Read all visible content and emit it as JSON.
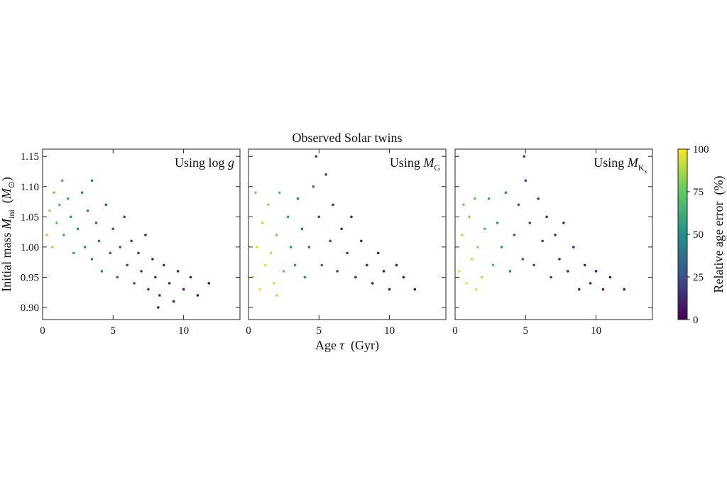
{
  "chart_data": [
    {
      "type": "scatter",
      "xlim": [
        0,
        14
      ],
      "ylim": [
        0.88,
        1.162
      ],
      "xticks": [
        0,
        5,
        10
      ],
      "yticks": [
        {
          "value": 0.9,
          "label": "0.90"
        },
        0.95,
        {
          "value": 1.0,
          "label": "1.00"
        },
        1.05,
        {
          "value": 1.1,
          "label": "1.10"
        },
        1.15
      ],
      "ytick_labels": true,
      "colormap": "viridis",
      "clim": [
        0,
        100
      ],
      "ylabel": [
        {
          "text": "Initial mass "
        },
        {
          "text": "M",
          "style": "italic"
        },
        {
          "text": "ini",
          "style": "sub"
        },
        {
          "text": "  ("
        },
        {
          "text": "M",
          "style": "italic"
        },
        {
          "text": "⊙",
          "style": "sub"
        },
        {
          "text": ")"
        }
      ],
      "annotation": [
        {
          "text": "Using log "
        },
        {
          "text": "g",
          "style": "italic"
        }
      ],
      "x": [
        0.5,
        0.8,
        1.0,
        1.2,
        1.5,
        1.8,
        2.0,
        2.2,
        2.5,
        2.8,
        3.0,
        3.2,
        3.5,
        3.8,
        4.0,
        4.2,
        4.5,
        4.8,
        5.0,
        5.3,
        5.5,
        5.8,
        6.0,
        6.3,
        6.5,
        6.8,
        7.0,
        7.3,
        7.5,
        7.8,
        8.0,
        8.3,
        8.6,
        9.0,
        9.3,
        9.6,
        10.0,
        10.5,
        11.0,
        11.8,
        0.3,
        0.7,
        1.4,
        3.5,
        8.2
      ],
      "y": [
        1.06,
        1.09,
        1.04,
        1.07,
        1.02,
        1.08,
        1.05,
        0.99,
        1.03,
        1.09,
        1.0,
        1.06,
        0.98,
        1.04,
        1.01,
        0.96,
        1.07,
        0.99,
        1.03,
        0.95,
        1.0,
        1.05,
        0.97,
        1.01,
        0.94,
        0.99,
        0.96,
        1.02,
        0.93,
        0.98,
        0.95,
        0.92,
        0.97,
        0.94,
        0.91,
        0.96,
        0.93,
        0.95,
        0.92,
        0.94,
        1.02,
        1.0,
        1.11,
        1.11,
        0.9
      ],
      "c": [
        85,
        80,
        75,
        70,
        65,
        60,
        55,
        60,
        50,
        45,
        45,
        40,
        40,
        35,
        35,
        40,
        30,
        30,
        28,
        30,
        25,
        22,
        22,
        20,
        25,
        18,
        18,
        15,
        18,
        14,
        14,
        15,
        12,
        12,
        12,
        10,
        10,
        8,
        8,
        6,
        90,
        85,
        65,
        35,
        12
      ]
    },
    {
      "type": "scatter",
      "xlim": [
        0,
        14
      ],
      "ylim": [
        0.88,
        1.162
      ],
      "xticks": [
        0,
        5,
        10
      ],
      "yticks": [
        0.9,
        0.95,
        1.0,
        1.05,
        1.1,
        1.15
      ],
      "ytick_labels": false,
      "colormap": "viridis",
      "clim": [
        0,
        100
      ],
      "title": "Observed Solar twins",
      "xlabel": [
        {
          "text": "Age "
        },
        {
          "text": "τ",
          "style": "italic"
        },
        {
          "text": "  (Gyr)"
        }
      ],
      "annotation": [
        {
          "text": "Using "
        },
        {
          "text": "M",
          "style": "italic"
        },
        {
          "text": "G",
          "style": "sub"
        }
      ],
      "x": [
        0.3,
        0.6,
        0.8,
        1.0,
        1.2,
        1.4,
        1.6,
        1.8,
        2.0,
        2.2,
        2.5,
        2.8,
        3.0,
        3.3,
        3.5,
        3.8,
        4.0,
        4.3,
        4.6,
        5.0,
        5.2,
        5.5,
        5.8,
        6.0,
        6.3,
        6.6,
        7.0,
        7.3,
        7.6,
        8.0,
        8.4,
        8.8,
        9.2,
        9.6,
        10.0,
        10.5,
        11.0,
        11.8,
        0.5,
        2.0,
        4.8
      ],
      "y": [
        0.95,
        1.0,
        0.93,
        1.04,
        0.97,
        1.07,
        0.99,
        0.94,
        1.02,
        1.09,
        0.96,
        1.05,
        1.0,
        0.97,
        1.08,
        1.03,
        0.95,
        1.0,
        1.1,
        1.05,
        0.97,
        1.12,
        1.01,
        1.07,
        0.96,
        1.03,
        0.99,
        1.05,
        0.95,
        1.01,
        0.97,
        0.94,
        0.99,
        0.96,
        0.93,
        0.97,
        0.95,
        0.93,
        1.09,
        0.92,
        1.15
      ],
      "c": [
        98,
        95,
        97,
        90,
        95,
        85,
        90,
        92,
        80,
        70,
        75,
        60,
        55,
        50,
        45,
        40,
        45,
        35,
        30,
        25,
        30,
        20,
        20,
        18,
        20,
        15,
        14,
        12,
        14,
        10,
        10,
        10,
        8,
        8,
        8,
        6,
        6,
        5,
        80,
        90,
        20
      ]
    },
    {
      "type": "scatter",
      "xlim": [
        0,
        14
      ],
      "ylim": [
        0.88,
        1.162
      ],
      "xticks": [
        0,
        5,
        10
      ],
      "yticks": [
        0.9,
        0.95,
        1.0,
        1.05,
        1.1,
        1.15
      ],
      "ytick_labels": false,
      "colormap": "viridis",
      "clim": [
        0,
        100
      ],
      "annotation": [
        {
          "text": "Using "
        },
        {
          "text": "M",
          "style": "italic"
        },
        {
          "text": "K",
          "style": "sub"
        },
        {
          "text": "s",
          "style": "subsub"
        }
      ],
      "colorbar": {
        "label": "Relative age error  (%)",
        "ticks": [
          0,
          25,
          50,
          75,
          100
        ]
      },
      "x": [
        0.3,
        0.5,
        0.8,
        1.0,
        1.2,
        1.4,
        1.6,
        1.9,
        2.1,
        2.4,
        2.7,
        3.0,
        3.3,
        3.6,
        3.9,
        4.2,
        4.5,
        4.8,
        5.0,
        5.3,
        5.6,
        5.9,
        6.2,
        6.5,
        6.8,
        7.1,
        7.4,
        7.7,
        8.0,
        8.4,
        8.8,
        9.2,
        9.6,
        10.0,
        10.5,
        11.0,
        12.0,
        0.6,
        1.5,
        4.9
      ],
      "y": [
        0.96,
        1.02,
        0.94,
        1.05,
        0.98,
        1.08,
        1.0,
        0.95,
        1.03,
        1.08,
        0.97,
        1.04,
        1.0,
        1.09,
        0.96,
        1.02,
        1.07,
        0.98,
        1.11,
        1.04,
        0.97,
        1.08,
        1.01,
        1.05,
        0.95,
        1.02,
        0.98,
        1.04,
        0.96,
        1.0,
        0.93,
        0.97,
        0.94,
        0.96,
        0.93,
        0.95,
        0.93,
        1.07,
        0.93,
        1.15
      ],
      "c": [
        95,
        90,
        97,
        85,
        92,
        75,
        85,
        88,
        70,
        60,
        70,
        55,
        50,
        40,
        45,
        35,
        30,
        32,
        22,
        25,
        25,
        18,
        18,
        15,
        18,
        14,
        14,
        12,
        12,
        10,
        10,
        8,
        8,
        8,
        6,
        6,
        5,
        80,
        92,
        18
      ]
    }
  ]
}
